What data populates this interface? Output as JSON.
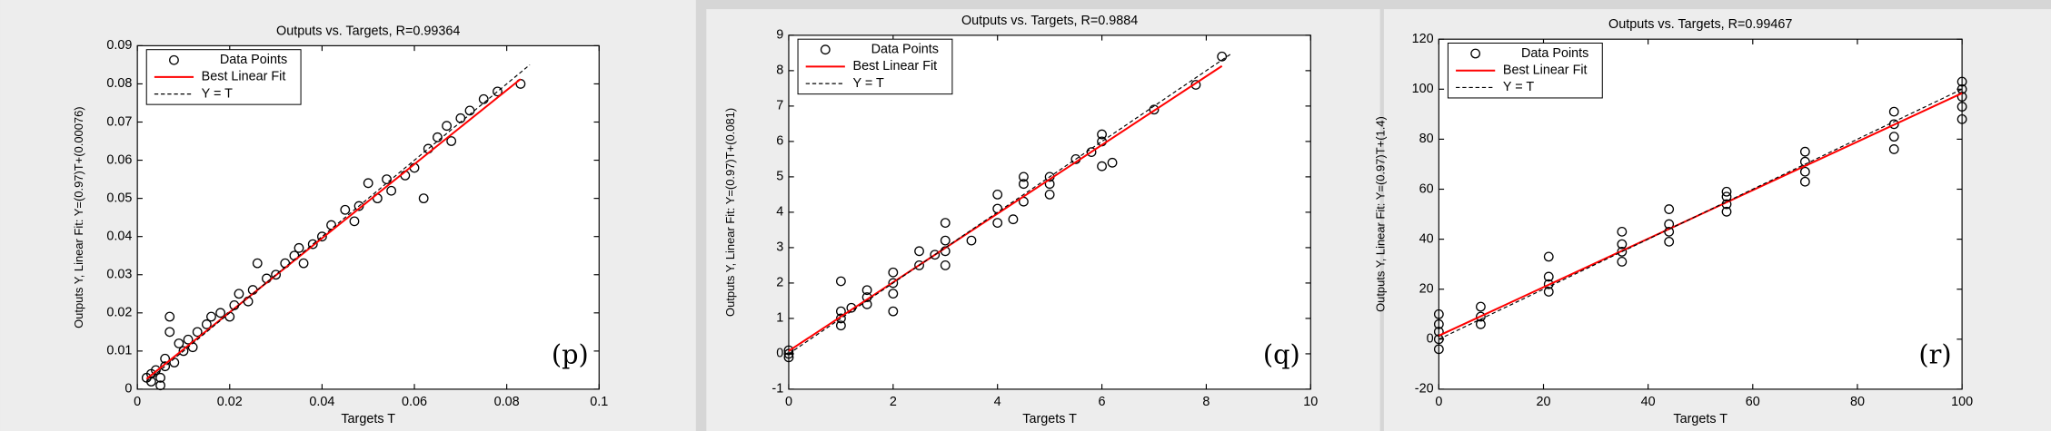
{
  "chart_data": [
    {
      "type": "scatter",
      "title": "Outputs vs. Targets, R=0.99364",
      "xlabel": "Targets T",
      "ylabel": "Outputs Y,  Linear Fit: Y=(0.97)T+(0.00076)",
      "annotation": "(p)",
      "xlim": [
        0,
        0.1
      ],
      "xticks": [
        0,
        0.02,
        0.04,
        0.06,
        0.08,
        0.1
      ],
      "ylim": [
        0,
        0.09
      ],
      "yticks": [
        0,
        0.01,
        0.02,
        0.03,
        0.04,
        0.05,
        0.06,
        0.07,
        0.08,
        0.09
      ],
      "legend": "upper left",
      "series": [
        {
          "name": "Data Points",
          "color": "#000000",
          "marker": "circle",
          "x": [
            0.002,
            0.003,
            0.003,
            0.004,
            0.005,
            0.005,
            0.006,
            0.006,
            0.007,
            0.007,
            0.008,
            0.009,
            0.01,
            0.011,
            0.012,
            0.013,
            0.015,
            0.016,
            0.018,
            0.02,
            0.021,
            0.022,
            0.024,
            0.025,
            0.026,
            0.028,
            0.03,
            0.032,
            0.034,
            0.035,
            0.036,
            0.038,
            0.04,
            0.042,
            0.045,
            0.047,
            0.048,
            0.05,
            0.052,
            0.054,
            0.055,
            0.058,
            0.06,
            0.062,
            0.063,
            0.065,
            0.067,
            0.068,
            0.07,
            0.072,
            0.075,
            0.078,
            0.083
          ],
          "values": [
            0.003,
            0.004,
            0.002,
            0.005,
            0.003,
            0.001,
            0.006,
            0.008,
            0.015,
            0.019,
            0.007,
            0.012,
            0.01,
            0.013,
            0.011,
            0.015,
            0.017,
            0.019,
            0.02,
            0.019,
            0.022,
            0.025,
            0.023,
            0.026,
            0.033,
            0.029,
            0.03,
            0.033,
            0.035,
            0.037,
            0.033,
            0.038,
            0.04,
            0.043,
            0.047,
            0.044,
            0.048,
            0.054,
            0.05,
            0.055,
            0.052,
            0.056,
            0.058,
            0.05,
            0.063,
            0.066,
            0.069,
            0.065,
            0.071,
            0.073,
            0.076,
            0.078,
            0.08
          ]
        },
        {
          "name": "Best Linear Fit",
          "color": "#ff0000",
          "marker": "line",
          "x": [
            0.002,
            0.083
          ],
          "values": [
            0.0027,
            0.08127
          ]
        },
        {
          "name": "Y = T",
          "color": "#000000",
          "marker": "dashed",
          "x": [
            0.002,
            0.085
          ],
          "values": [
            0.002,
            0.085
          ]
        }
      ]
    },
    {
      "type": "scatter",
      "title": "Outputs vs. Targets, R=0.9884",
      "xlabel": "Targets T",
      "ylabel": "Outputs Y,  Linear Fit: Y=(0.97)T+(0.081)",
      "annotation": "(q)",
      "xlim": [
        0,
        10
      ],
      "xticks": [
        0,
        2,
        4,
        6,
        8,
        10
      ],
      "ylim": [
        -1,
        9
      ],
      "yticks": [
        -1,
        0,
        1,
        2,
        3,
        4,
        5,
        6,
        7,
        8,
        9
      ],
      "legend": "upper left",
      "series": [
        {
          "name": "Data Points",
          "color": "#000000",
          "marker": "circle",
          "x": [
            0,
            0,
            0,
            1,
            1,
            1,
            1,
            1.2,
            1.5,
            1.5,
            1.5,
            2,
            2,
            2,
            2,
            2.5,
            2.5,
            2.8,
            3,
            3,
            3,
            3,
            3.5,
            4,
            4,
            4,
            4.3,
            4.5,
            4.5,
            4.5,
            5,
            5,
            5,
            5.5,
            5.8,
            6,
            6,
            6,
            6.2,
            7,
            7.8,
            8.3
          ],
          "values": [
            0,
            -0.1,
            0.1,
            0.8,
            1,
            1.2,
            2.05,
            1.3,
            1.4,
            1.6,
            1.8,
            1.2,
            1.7,
            2,
            2.3,
            2.5,
            2.9,
            2.8,
            2.5,
            2.9,
            3.2,
            3.7,
            3.2,
            3.7,
            4.1,
            4.5,
            3.8,
            4.3,
            4.8,
            5,
            4.5,
            4.8,
            5,
            5.5,
            5.7,
            5.3,
            6,
            6.2,
            5.4,
            6.9,
            7.6,
            8.4
          ]
        },
        {
          "name": "Best Linear Fit",
          "color": "#ff0000",
          "marker": "line",
          "x": [
            0,
            8.3
          ],
          "values": [
            0.081,
            8.132
          ]
        },
        {
          "name": "Y = T",
          "color": "#000000",
          "marker": "dashed",
          "x": [
            0,
            8.5
          ],
          "values": [
            0,
            8.5
          ]
        }
      ]
    },
    {
      "type": "scatter",
      "title": "Outputs vs. Targets, R=0.99467",
      "xlabel": "Targets T",
      "ylabel": "Outputs Y,  Linear Fit: Y=(0.97)T+(1.4)",
      "annotation": "(r)",
      "xlim": [
        0,
        100
      ],
      "xticks": [
        0,
        20,
        40,
        60,
        80,
        100
      ],
      "ylim": [
        -20,
        120
      ],
      "yticks": [
        -20,
        0,
        20,
        40,
        60,
        80,
        100,
        120
      ],
      "legend": "upper left",
      "series": [
        {
          "name": "Data Points",
          "color": "#000000",
          "marker": "circle",
          "x": [
            0,
            0,
            0,
            0,
            0,
            8,
            8,
            8,
            21,
            21,
            21,
            21,
            35,
            35,
            35,
            35,
            44,
            44,
            44,
            44,
            55,
            55,
            55,
            55,
            70,
            70,
            70,
            70,
            87,
            87,
            87,
            87,
            100,
            100,
            100,
            100,
            100
          ],
          "values": [
            -4,
            0,
            3,
            6,
            10,
            6,
            9,
            13,
            19,
            22,
            25,
            33,
            31,
            35,
            38,
            43,
            39,
            43,
            46,
            52,
            51,
            54,
            57,
            59,
            63,
            67,
            71,
            75,
            76,
            81,
            86,
            91,
            88,
            93,
            97,
            100,
            103
          ]
        },
        {
          "name": "Best Linear Fit",
          "color": "#ff0000",
          "marker": "line",
          "x": [
            0,
            100
          ],
          "values": [
            1.4,
            98.4
          ]
        },
        {
          "name": "Y = T",
          "color": "#000000",
          "marker": "dashed",
          "x": [
            0,
            100
          ],
          "values": [
            0,
            100
          ]
        }
      ]
    }
  ]
}
